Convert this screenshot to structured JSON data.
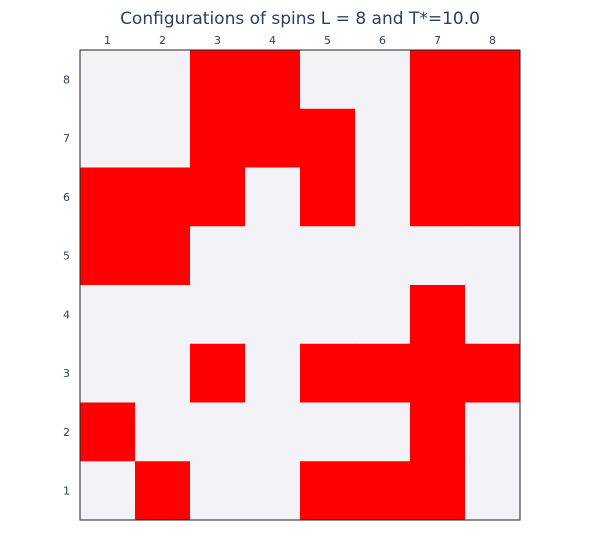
{
  "chart_data": {
    "type": "heatmap",
    "title": "Configurations of spins L = 8 and T*=10.0",
    "x_ticks": [
      "1",
      "2",
      "3",
      "4",
      "5",
      "6",
      "7",
      "8"
    ],
    "y_ticks": [
      "1",
      "2",
      "3",
      "4",
      "5",
      "6",
      "7",
      "8"
    ],
    "x_axis_position": "top",
    "xlim": [
      0.5,
      8.5
    ],
    "ylim": [
      0.5,
      8.5
    ],
    "values_note": "rows listed from y=8 (top) to y=1 (bottom); 1 = spin up (red), 0 = spin down (light)",
    "rows_y": [
      8,
      7,
      6,
      5,
      4,
      3,
      2,
      1
    ],
    "z": [
      [
        0,
        0,
        1,
        1,
        0,
        0,
        1,
        1
      ],
      [
        0,
        0,
        1,
        1,
        1,
        0,
        1,
        1
      ],
      [
        1,
        1,
        1,
        0,
        1,
        0,
        1,
        1
      ],
      [
        1,
        1,
        0,
        0,
        0,
        0,
        0,
        0
      ],
      [
        0,
        0,
        0,
        0,
        0,
        0,
        1,
        0
      ],
      [
        0,
        0,
        1,
        0,
        1,
        1,
        1,
        1
      ],
      [
        1,
        0,
        0,
        0,
        0,
        0,
        1,
        0
      ],
      [
        0,
        1,
        0,
        0,
        1,
        1,
        1,
        0
      ]
    ],
    "colorscale": {
      "0": "#f2f2f7",
      "1": "#ff0000"
    },
    "grid": false,
    "legend": "none"
  },
  "colors": {
    "text": "#2a3f5f",
    "frame": "#222222"
  }
}
